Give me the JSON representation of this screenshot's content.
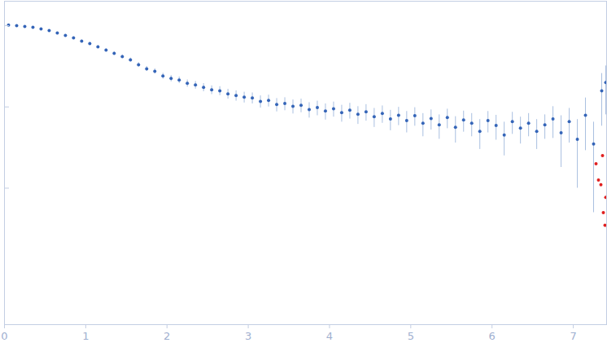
{
  "chart_data": {
    "type": "scatter",
    "log": "y",
    "grid": false,
    "tick_labels": "x",
    "xlim": [
      0,
      7.41
    ],
    "ylim": [
      0.000209,
      2.0
    ],
    "xticks": [
      0,
      1,
      2,
      3,
      4,
      5,
      6,
      7
    ],
    "yticks": [
      0.01,
      0.1,
      1
    ],
    "series": [
      {
        "color": "#3565b8",
        "marker": "circle",
        "x": [
          0.05,
          0.15,
          0.25,
          0.35,
          0.45,
          0.55,
          0.65,
          0.75,
          0.85,
          0.95,
          1.05,
          1.15,
          1.25,
          1.35,
          1.45,
          1.55,
          1.65,
          1.75,
          1.85,
          1.95,
          2.05,
          2.15,
          2.25,
          2.35,
          2.45,
          2.55,
          2.65,
          2.75,
          2.85,
          2.95,
          3.05,
          3.15,
          3.25,
          3.35,
          3.45,
          3.55,
          3.65,
          3.75,
          3.85,
          3.95,
          4.05,
          4.15,
          4.25,
          4.35,
          4.45,
          4.55,
          4.65,
          4.75,
          4.85,
          4.95,
          5.05,
          5.15,
          5.25,
          5.35,
          5.45,
          5.55,
          5.65,
          5.75,
          5.85,
          5.95,
          6.05,
          6.15,
          6.25,
          6.35,
          6.45,
          6.55,
          6.65,
          6.75,
          6.85,
          6.95,
          7.05,
          7.15,
          7.25,
          7.35,
          7.4
        ],
        "values": [
          1.02,
          1.0,
          0.977,
          0.955,
          0.912,
          0.871,
          0.813,
          0.759,
          0.708,
          0.646,
          0.603,
          0.55,
          0.501,
          0.457,
          0.417,
          0.38,
          0.331,
          0.295,
          0.275,
          0.24,
          0.224,
          0.214,
          0.195,
          0.186,
          0.174,
          0.162,
          0.158,
          0.145,
          0.138,
          0.132,
          0.129,
          0.117,
          0.12,
          0.107,
          0.11,
          0.102,
          0.105,
          0.093,
          0.098,
          0.089,
          0.095,
          0.085,
          0.091,
          0.081,
          0.087,
          0.076,
          0.083,
          0.071,
          0.079,
          0.068,
          0.078,
          0.063,
          0.072,
          0.06,
          0.074,
          0.056,
          0.069,
          0.063,
          0.05,
          0.068,
          0.059,
          0.045,
          0.066,
          0.055,
          0.063,
          0.05,
          0.06,
          0.071,
          0.048,
          0.066,
          0.04,
          0.079,
          0.035,
          0.158,
          0.2
        ],
        "errors": [
          0.02,
          0.02,
          0.02,
          0.02,
          0.02,
          0.02,
          0.02,
          0.02,
          0.02,
          0.02,
          0.02,
          0.02,
          0.02,
          0.02,
          0.02,
          0.02,
          0.02,
          0.02,
          0.02,
          0.02,
          0.02,
          0.02,
          0.02,
          0.02,
          0.02,
          0.02,
          0.02,
          0.02,
          0.02,
          0.02,
          0.02,
          0.02,
          0.02,
          0.02,
          0.02,
          0.02,
          0.02,
          0.02,
          0.02,
          0.02,
          0.02,
          0.02,
          0.02,
          0.02,
          0.02,
          0.02,
          0.02,
          0.02,
          0.02,
          0.02,
          0.02,
          0.02,
          0.02,
          0.02,
          0.02,
          0.02,
          0.02,
          0.02,
          0.02,
          0.02,
          0.02,
          0.02,
          0.02,
          0.02,
          0.02,
          0.02,
          0.02,
          0.03,
          0.03,
          0.03,
          0.03,
          0.05,
          0.03,
          0.1,
          0.12
        ]
      },
      {
        "color": "#e02020",
        "marker": "circle",
        "x": [
          7.28,
          7.31,
          7.34,
          7.36,
          7.37,
          7.39,
          7.4
        ],
        "values": [
          0.02,
          0.0126,
          0.011,
          0.0251,
          0.005,
          0.0035,
          0.0077
        ]
      }
    ]
  }
}
